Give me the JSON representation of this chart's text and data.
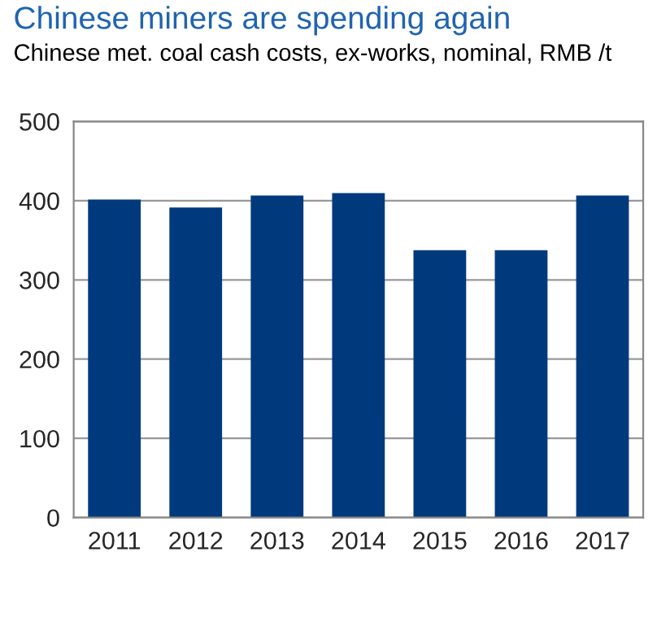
{
  "chart_data": {
    "type": "bar",
    "title": "Chinese miners are spending again",
    "subtitle": "Chinese met. coal cash costs, ex-works, nominal, RMB /t",
    "categories": [
      "2011",
      "2012",
      "2013",
      "2014",
      "2015",
      "2016",
      "2017"
    ],
    "values": [
      400,
      390,
      405,
      408,
      336,
      336,
      405
    ],
    "color": "#003a7d",
    "ylim": [
      0,
      500
    ],
    "yticks": [
      0,
      100,
      200,
      300,
      400,
      500
    ],
    "grid": "y"
  }
}
